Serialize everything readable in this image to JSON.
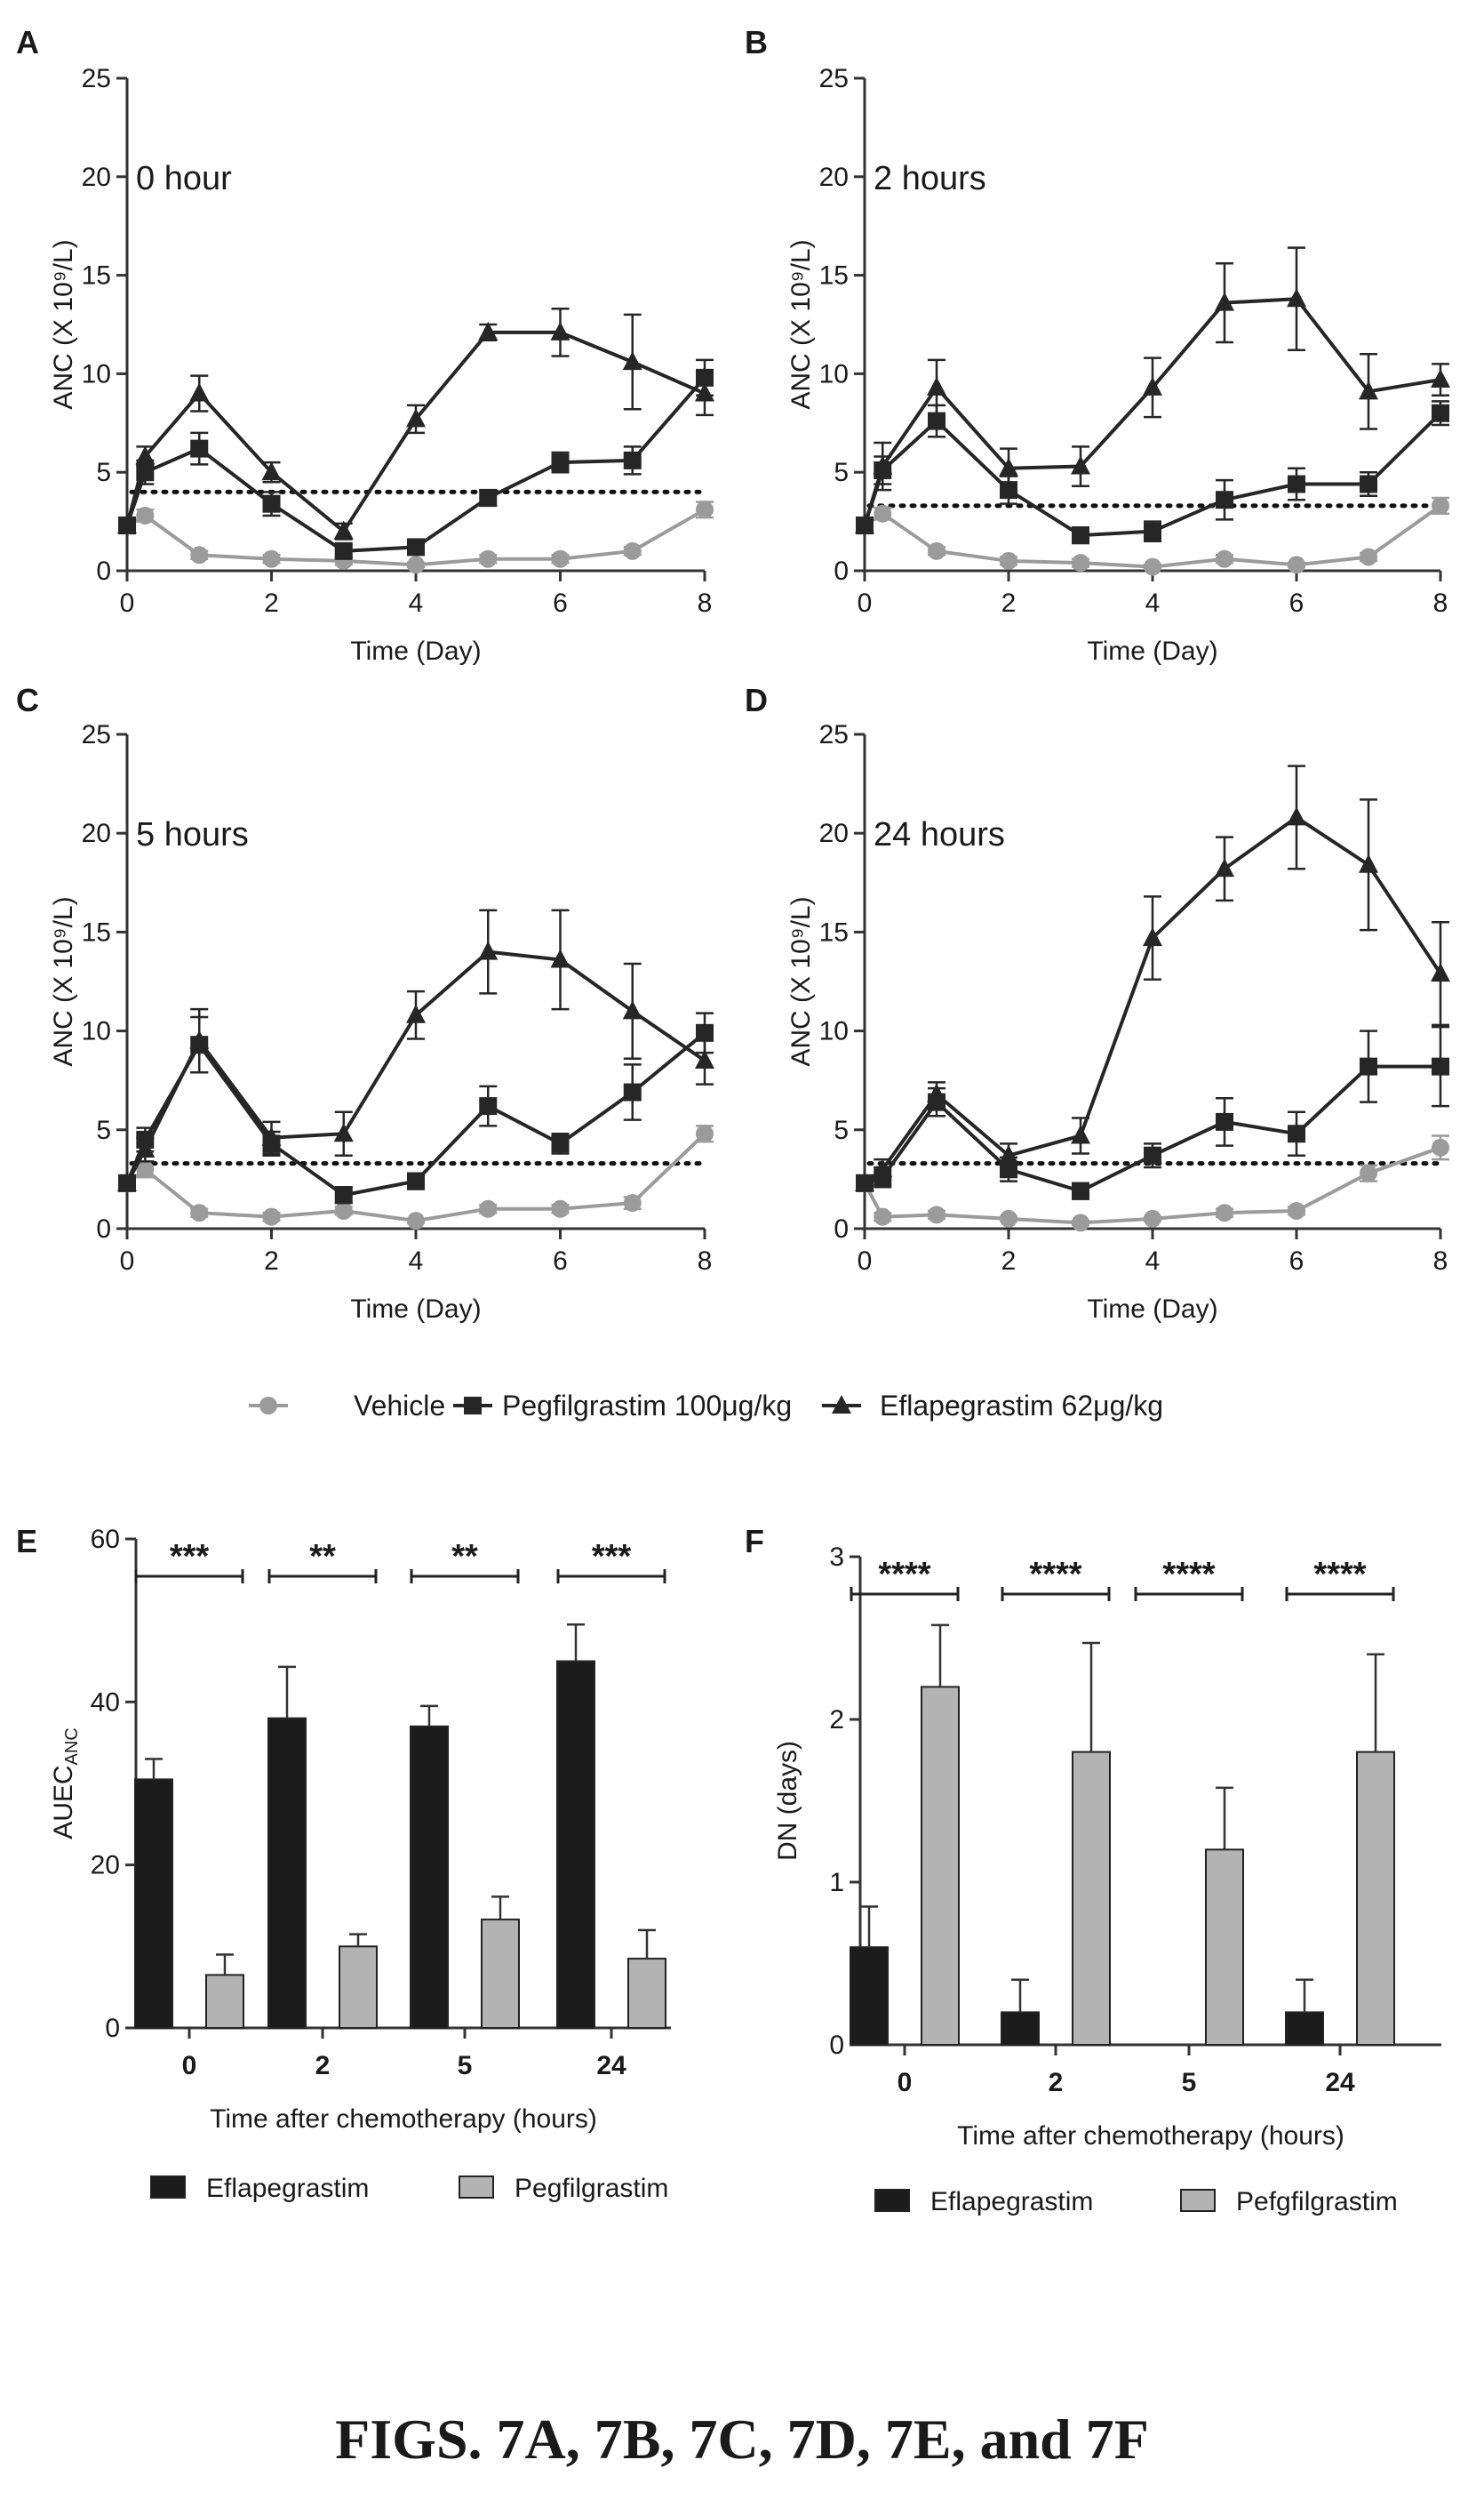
{
  "colors": {
    "vehicle": "#9b9b9b",
    "pegfilgrastim": "#262626",
    "eflapegrastim": "#262626",
    "bar_eflapegrastim": "#1c1c1c",
    "bar_pegfilgrastim": "#b3b3b3",
    "axis": "#333333"
  },
  "line_legend": [
    {
      "label": "Vehicle",
      "marker": "circle",
      "color": "#9b9b9b"
    },
    {
      "label": "Pegfilgrastim 100μg/kg",
      "marker": "square",
      "color": "#262626"
    },
    {
      "label": "Eflapegrastim 62μg/kg",
      "marker": "triangle",
      "color": "#262626"
    }
  ],
  "caption": "FIGS. 7A, 7B, 7C, 7D, 7E, and 7F",
  "chart_data": [
    {
      "panel": "A",
      "type": "line",
      "annotation": "0 hour",
      "xlabel": "Time (Day)",
      "ylabel": "ANC (X 10⁹/L)",
      "xlim": [
        0,
        8
      ],
      "ylim": [
        0,
        25
      ],
      "xticks": [
        0,
        2,
        4,
        6,
        8
      ],
      "yticks": [
        0,
        5,
        10,
        15,
        20,
        25
      ],
      "threshold": 4.0,
      "series": [
        {
          "name": "Vehicle",
          "marker": "circle",
          "x": [
            0,
            0.25,
            1,
            2,
            3,
            4,
            5,
            6,
            7,
            8
          ],
          "y": [
            2.3,
            2.8,
            0.8,
            0.6,
            0.5,
            0.3,
            0.6,
            0.6,
            1.0,
            3.1
          ],
          "err": [
            0.4,
            0.3,
            0.2,
            0.2,
            0.2,
            0.1,
            0.2,
            0.2,
            0.2,
            0.4
          ]
        },
        {
          "name": "Pegfilgrastim 100μg/kg",
          "marker": "square",
          "x": [
            0,
            0.25,
            1,
            2,
            3,
            4,
            5,
            6,
            7,
            8
          ],
          "y": [
            2.3,
            5.0,
            6.2,
            3.4,
            1.0,
            1.2,
            3.7,
            5.5,
            5.6,
            9.8
          ],
          "err": [
            0.3,
            0.6,
            0.8,
            0.6,
            0.3,
            0.3,
            0.4,
            0.5,
            0.7,
            0.9
          ]
        },
        {
          "name": "Eflapegrastim 62μg/kg",
          "marker": "triangle",
          "x": [
            0,
            0.25,
            1,
            2,
            3,
            4,
            5,
            6,
            7,
            8
          ],
          "y": [
            2.3,
            5.8,
            9.0,
            5.0,
            2.0,
            7.7,
            12.1,
            12.1,
            10.6,
            9.0
          ],
          "err": [
            0.3,
            0.5,
            0.9,
            0.5,
            0.4,
            0.7,
            0.4,
            1.2,
            2.4,
            1.1
          ]
        }
      ]
    },
    {
      "panel": "B",
      "type": "line",
      "annotation": "2 hours",
      "xlabel": "Time (Day)",
      "ylabel": "ANC (X 10⁹/L)",
      "xlim": [
        0,
        8
      ],
      "ylim": [
        0,
        25
      ],
      "xticks": [
        0,
        2,
        4,
        6,
        8
      ],
      "yticks": [
        0,
        5,
        10,
        15,
        20,
        25
      ],
      "threshold": 3.3,
      "series": [
        {
          "name": "Vehicle",
          "marker": "circle",
          "x": [
            0,
            0.25,
            1,
            2,
            3,
            4,
            5,
            6,
            7,
            8
          ],
          "y": [
            2.3,
            2.9,
            1.0,
            0.5,
            0.4,
            0.2,
            0.6,
            0.3,
            0.7,
            3.3
          ],
          "err": [
            0.4,
            0.3,
            0.2,
            0.2,
            0.2,
            0.1,
            0.2,
            0.1,
            0.2,
            0.4
          ]
        },
        {
          "name": "Pegfilgrastim 100μg/kg",
          "marker": "square",
          "x": [
            0,
            0.25,
            1,
            2,
            3,
            4,
            5,
            6,
            7,
            8
          ],
          "y": [
            2.3,
            5.1,
            7.6,
            4.1,
            1.8,
            2.0,
            3.6,
            4.4,
            4.4,
            8.0
          ],
          "err": [
            0.3,
            0.7,
            0.8,
            0.7,
            0.4,
            0.5,
            1.0,
            0.8,
            0.6,
            0.6
          ]
        },
        {
          "name": "Eflapegrastim 62μg/kg",
          "marker": "triangle",
          "x": [
            0,
            0.25,
            1,
            2,
            3,
            4,
            5,
            6,
            7,
            8
          ],
          "y": [
            2.3,
            5.3,
            9.3,
            5.2,
            5.3,
            9.3,
            13.6,
            13.8,
            9.1,
            9.7
          ],
          "err": [
            0.3,
            1.2,
            1.4,
            1.0,
            1.0,
            1.5,
            2.0,
            2.6,
            1.9,
            0.8
          ]
        }
      ]
    },
    {
      "panel": "C",
      "type": "line",
      "annotation": "5 hours",
      "xlabel": "Time (Day)",
      "ylabel": "ANC (X 10⁹/L)",
      "xlim": [
        0,
        8
      ],
      "ylim": [
        0,
        25
      ],
      "xticks": [
        0,
        2,
        4,
        6,
        8
      ],
      "yticks": [
        0,
        5,
        10,
        15,
        20,
        25
      ],
      "threshold": 3.3,
      "series": [
        {
          "name": "Vehicle",
          "marker": "circle",
          "x": [
            0,
            0.25,
            1,
            2,
            3,
            4,
            5,
            6,
            7,
            8
          ],
          "y": [
            2.3,
            3.0,
            0.8,
            0.6,
            0.9,
            0.4,
            1.0,
            1.0,
            1.3,
            4.8
          ],
          "err": [
            0.4,
            0.4,
            0.2,
            0.2,
            0.2,
            0.1,
            0.2,
            0.2,
            0.3,
            0.4
          ]
        },
        {
          "name": "Pegfilgrastim 100μg/kg",
          "marker": "square",
          "x": [
            0,
            0.25,
            1,
            2,
            3,
            4,
            5,
            6,
            7,
            8
          ],
          "y": [
            2.3,
            4.5,
            9.3,
            4.3,
            1.7,
            2.4,
            6.2,
            4.3,
            6.9,
            9.9
          ],
          "err": [
            0.3,
            0.6,
            1.4,
            0.6,
            0.4,
            0.4,
            1.0,
            0.5,
            1.4,
            1.0
          ]
        },
        {
          "name": "Eflapegrastim 62μg/kg",
          "marker": "triangle",
          "x": [
            0,
            0.25,
            1,
            2,
            3,
            4,
            5,
            6,
            7,
            8
          ],
          "y": [
            2.3,
            4.0,
            9.5,
            4.6,
            4.8,
            10.8,
            14.0,
            13.6,
            11.0,
            8.5
          ],
          "err": [
            0.3,
            0.6,
            1.6,
            0.8,
            1.1,
            1.2,
            2.1,
            2.5,
            2.4,
            1.2
          ]
        }
      ]
    },
    {
      "panel": "D",
      "type": "line",
      "annotation": "24 hours",
      "xlabel": "Time (Day)",
      "ylabel": "ANC (X 10⁹/L)",
      "xlim": [
        0,
        8
      ],
      "ylim": [
        0,
        25
      ],
      "xticks": [
        0,
        2,
        4,
        6,
        8
      ],
      "yticks": [
        0,
        5,
        10,
        15,
        20,
        25
      ],
      "threshold": 3.3,
      "series": [
        {
          "name": "Vehicle",
          "marker": "circle",
          "x": [
            0,
            0.25,
            1,
            2,
            3,
            4,
            5,
            6,
            7,
            8
          ],
          "y": [
            2.3,
            0.6,
            0.7,
            0.5,
            0.3,
            0.5,
            0.8,
            0.9,
            2.8,
            4.1
          ],
          "err": [
            0.4,
            0.2,
            0.2,
            0.1,
            0.1,
            0.1,
            0.2,
            0.2,
            0.4,
            0.6
          ]
        },
        {
          "name": "Pegfilgrastim 100μg/kg",
          "marker": "square",
          "x": [
            0,
            0.25,
            1,
            2,
            3,
            4,
            5,
            6,
            7,
            8
          ],
          "y": [
            2.3,
            2.6,
            6.4,
            3.0,
            1.9,
            3.7,
            5.4,
            4.8,
            8.2,
            8.2
          ],
          "err": [
            0.3,
            0.5,
            0.7,
            0.6,
            0.4,
            0.6,
            1.2,
            1.1,
            1.8,
            2.0
          ]
        },
        {
          "name": "Eflapegrastim 62μg/kg",
          "marker": "triangle",
          "x": [
            0,
            0.25,
            1,
            2,
            3,
            4,
            5,
            6,
            7,
            8
          ],
          "y": [
            2.3,
            3.0,
            6.8,
            3.7,
            4.7,
            14.7,
            18.2,
            20.8,
            18.4,
            12.9
          ],
          "err": [
            0.3,
            0.5,
            0.6,
            0.6,
            0.9,
            2.1,
            1.6,
            2.6,
            3.3,
            2.6
          ]
        }
      ]
    },
    {
      "panel": "E",
      "type": "bar",
      "xlabel": "Time after chemotherapy (hours)",
      "ylabel": "AUEC",
      "ylabel_sub": "ANC",
      "categories": [
        "0",
        "2",
        "5",
        "24"
      ],
      "ylim": [
        0,
        60
      ],
      "yticks": [
        0,
        20,
        40,
        60
      ],
      "significance": [
        "***",
        "**",
        "**",
        "***"
      ],
      "series": [
        {
          "name": "Eflapegrastim",
          "values": [
            30.5,
            38.0,
            37.0,
            45.0
          ],
          "err": [
            2.5,
            6.3,
            2.5,
            4.5
          ]
        },
        {
          "name": "Pegfilgrastim",
          "values": [
            6.5,
            10.0,
            13.3,
            8.5
          ],
          "err": [
            2.5,
            1.5,
            2.8,
            3.5
          ]
        }
      ]
    },
    {
      "panel": "F",
      "type": "bar",
      "xlabel": "Time after chemotherapy (hours)",
      "ylabel": "DN (days)",
      "categories": [
        "0",
        "2",
        "5",
        "24"
      ],
      "ylim": [
        0,
        3
      ],
      "yticks": [
        0,
        1,
        2,
        3
      ],
      "significance": [
        "****",
        "****",
        "****",
        "****"
      ],
      "series": [
        {
          "name": "Eflapegrastim",
          "values": [
            0.6,
            0.2,
            0.0,
            0.2
          ],
          "err": [
            0.25,
            0.2,
            0.0,
            0.2
          ]
        },
        {
          "name": "Pefgfilgrastim",
          "values": [
            2.2,
            1.8,
            1.2,
            1.8
          ],
          "err": [
            0.38,
            0.67,
            0.38,
            0.6
          ]
        }
      ]
    }
  ]
}
